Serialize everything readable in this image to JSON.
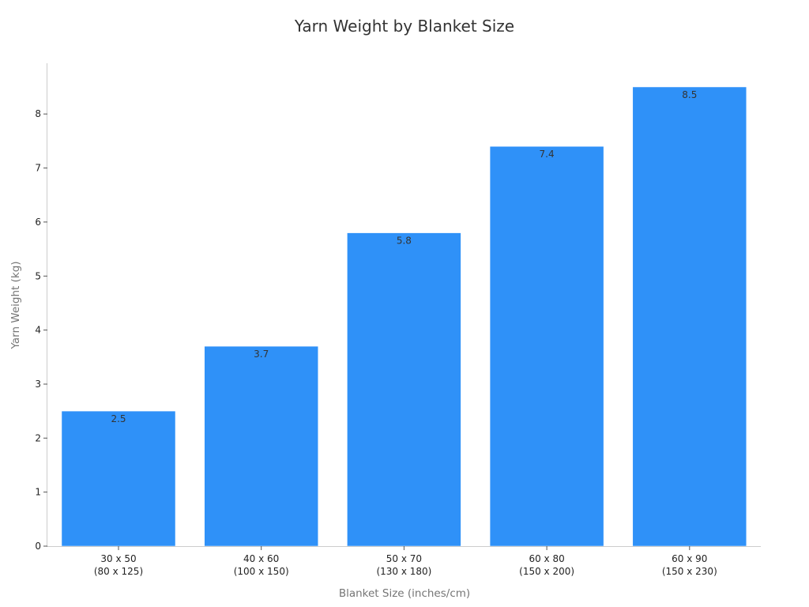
{
  "chart_data": {
    "type": "bar",
    "title": "Yarn Weight by Blanket Size",
    "xlabel": "Blanket Size (inches/cm)",
    "ylabel": "Yarn Weight (kg)",
    "categories": [
      [
        "30 x 50",
        "(80 x 125)"
      ],
      [
        "40 x 60",
        "(100 x 150)"
      ],
      [
        "50 x 70",
        "(130 x 180)"
      ],
      [
        "60 x 80",
        "(150 x 200)"
      ],
      [
        "60 x 90",
        "(150 x 230)"
      ]
    ],
    "values": [
      2.5,
      3.7,
      5.8,
      7.4,
      8.5
    ],
    "data_labels": [
      "2.5",
      "3.7",
      "5.8",
      "7.4",
      "8.5"
    ],
    "yticks": [
      0,
      1,
      2,
      3,
      4,
      5,
      6,
      7,
      8
    ],
    "ylim": [
      0,
      8.93
    ],
    "grid": false,
    "legend": "none",
    "bar_color": "#2f91f8"
  }
}
